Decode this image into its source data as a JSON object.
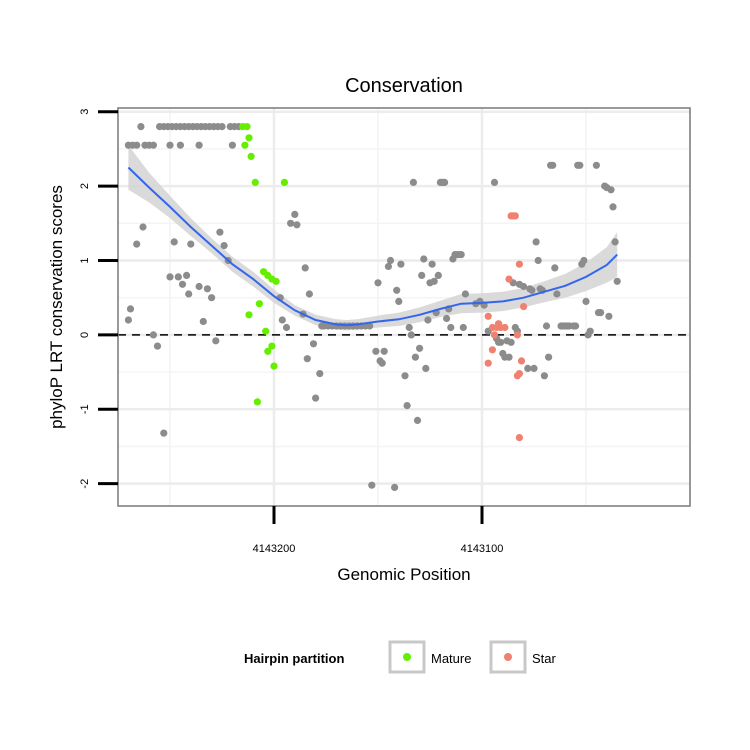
{
  "chart_data": {
    "type": "scatter",
    "title": "Conservation",
    "xlabel": "Genomic Position",
    "ylabel": "phyloP LRT conservation scores",
    "x_reversed": true,
    "xlim": [
      4143000,
      4143275
    ],
    "ylim": [
      -2.3,
      3.05
    ],
    "x_ticks": [
      4143200,
      4143100
    ],
    "x_tick_labels": [
      "4143200",
      "4143100"
    ],
    "y_ticks": [
      -2,
      -1,
      0,
      1,
      2,
      3
    ],
    "y_tick_labels": [
      "-2",
      "-1",
      "0",
      "1",
      "2",
      "3"
    ],
    "grid": true,
    "reference_line": {
      "y": 0,
      "style": "dashed"
    },
    "legend": {
      "title": "Hairpin partition",
      "position": "bottom",
      "entries": [
        {
          "label": "Mature",
          "color": "#66ee00"
        },
        {
          "label": "Star",
          "color": "#f08070"
        }
      ]
    },
    "colors": {
      "other": "#8c8c8c",
      "mature": "#66ee00",
      "star": "#f08070",
      "smooth": "#3366ee",
      "band": "#d3d3d3"
    },
    "series": [
      {
        "group": "other",
        "points": [
          [
            4143269,
            0.35
          ],
          [
            4143270,
            0.2
          ],
          [
            4143270,
            2.55
          ],
          [
            4143268,
            2.55
          ],
          [
            4143266,
            2.55
          ],
          [
            4143264,
            2.8
          ],
          [
            4143262,
            2.55
          ],
          [
            4143260,
            2.55
          ],
          [
            4143258,
            2.55
          ],
          [
            4143255,
            2.8
          ],
          [
            4143253,
            2.8
          ],
          [
            4143251,
            2.8
          ],
          [
            4143249,
            2.8
          ],
          [
            4143247,
            2.8
          ],
          [
            4143245,
            2.8
          ],
          [
            4143243,
            2.8
          ],
          [
            4143241,
            2.8
          ],
          [
            4143239,
            2.8
          ],
          [
            4143237,
            2.8
          ],
          [
            4143235,
            2.8
          ],
          [
            4143233,
            2.8
          ],
          [
            4143231,
            2.8
          ],
          [
            4143229,
            2.8
          ],
          [
            4143227,
            2.8
          ],
          [
            4143225,
            2.8
          ],
          [
            4143221,
            2.8
          ],
          [
            4143219,
            2.8
          ],
          [
            4143217,
            2.8
          ],
          [
            4143250,
            2.55
          ],
          [
            4143245,
            2.55
          ],
          [
            4143236,
            2.55
          ],
          [
            4143220,
            2.55
          ],
          [
            4143266,
            1.22
          ],
          [
            4143263,
            1.45
          ],
          [
            4143258,
            0.0
          ],
          [
            4143256,
            -0.15
          ],
          [
            4143253,
            -1.32
          ],
          [
            4143250,
            0.78
          ],
          [
            4143248,
            1.25
          ],
          [
            4143246,
            0.78
          ],
          [
            4143244,
            0.68
          ],
          [
            4143242,
            0.8
          ],
          [
            4143241,
            0.55
          ],
          [
            4143240,
            1.22
          ],
          [
            4143236,
            0.65
          ],
          [
            4143234,
            0.18
          ],
          [
            4143232,
            0.62
          ],
          [
            4143230,
            0.5
          ],
          [
            4143228,
            -0.08
          ],
          [
            4143226,
            1.38
          ],
          [
            4143224,
            1.2
          ],
          [
            4143222,
            1.0
          ],
          [
            4143197,
            0.5
          ],
          [
            4143196,
            0.2
          ],
          [
            4143194,
            0.1
          ],
          [
            4143192,
            1.5
          ],
          [
            4143190,
            1.62
          ],
          [
            4143189,
            1.48
          ],
          [
            4143186,
            0.28
          ],
          [
            4143185,
            0.9
          ],
          [
            4143184,
            -0.32
          ],
          [
            4143183,
            0.55
          ],
          [
            4143181,
            -0.12
          ],
          [
            4143180,
            -0.85
          ],
          [
            4143178,
            -0.52
          ],
          [
            4143177,
            0.12
          ],
          [
            4143176,
            0.12
          ],
          [
            4143174,
            0.12
          ],
          [
            4143172,
            0.12
          ],
          [
            4143170,
            0.12
          ],
          [
            4143168,
            0.12
          ],
          [
            4143166,
            0.12
          ],
          [
            4143164,
            0.12
          ],
          [
            4143162,
            0.12
          ],
          [
            4143160,
            0.12
          ],
          [
            4143158,
            0.12
          ],
          [
            4143156,
            0.12
          ],
          [
            4143154,
            0.12
          ],
          [
            4143153,
            -2.02
          ],
          [
            4143151,
            -0.22
          ],
          [
            4143150,
            0.7
          ],
          [
            4143149,
            -0.35
          ],
          [
            4143148,
            -0.38
          ],
          [
            4143147,
            -0.22
          ],
          [
            4143145,
            0.92
          ],
          [
            4143144,
            1.0
          ],
          [
            4143142,
            -2.05
          ],
          [
            4143141,
            0.6
          ],
          [
            4143140,
            0.45
          ],
          [
            4143139,
            0.95
          ],
          [
            4143137,
            -0.55
          ],
          [
            4143136,
            -0.95
          ],
          [
            4143135,
            0.1
          ],
          [
            4143134,
            0.0
          ],
          [
            4143133,
            2.05
          ],
          [
            4143132,
            -0.3
          ],
          [
            4143131,
            -1.15
          ],
          [
            4143130,
            -0.18
          ],
          [
            4143129,
            0.8
          ],
          [
            4143128,
            1.02
          ],
          [
            4143127,
            -0.45
          ],
          [
            4143126,
            0.2
          ],
          [
            4143125,
            0.7
          ],
          [
            4143124,
            0.95
          ],
          [
            4143123,
            0.72
          ],
          [
            4143122,
            0.3
          ],
          [
            4143121,
            0.8
          ],
          [
            4143120,
            2.05
          ],
          [
            4143119,
            2.05
          ],
          [
            4143118,
            2.05
          ],
          [
            4143117,
            0.22
          ],
          [
            4143116,
            0.35
          ],
          [
            4143115,
            0.1
          ],
          [
            4143114,
            1.02
          ],
          [
            4143113,
            1.08
          ],
          [
            4143112,
            1.08
          ],
          [
            4143111,
            1.08
          ],
          [
            4143110,
            1.08
          ],
          [
            4143109,
            0.1
          ],
          [
            4143108,
            0.55
          ],
          [
            4143103,
            0.42
          ],
          [
            4143101,
            0.45
          ],
          [
            4143099,
            0.4
          ],
          [
            4143097,
            0.05
          ],
          [
            4143094,
            2.05
          ],
          [
            4143093,
            -0.05
          ],
          [
            4143092,
            -0.1
          ],
          [
            4143091,
            -0.1
          ],
          [
            4143090,
            -0.25
          ],
          [
            4143089,
            -0.3
          ],
          [
            4143088,
            -0.08
          ],
          [
            4143087,
            -0.3
          ],
          [
            4143086,
            -0.1
          ],
          [
            4143085,
            0.7
          ],
          [
            4143084,
            0.1
          ],
          [
            4143083,
            0.05
          ],
          [
            4143082,
            0.68
          ],
          [
            4143080,
            0.65
          ],
          [
            4143078,
            -0.45
          ],
          [
            4143077,
            0.62
          ],
          [
            4143076,
            0.6
          ],
          [
            4143075,
            -0.45
          ],
          [
            4143074,
            1.25
          ],
          [
            4143073,
            1.0
          ],
          [
            4143072,
            0.62
          ],
          [
            4143071,
            0.6
          ],
          [
            4143070,
            -0.55
          ],
          [
            4143069,
            0.12
          ],
          [
            4143068,
            -0.3
          ],
          [
            4143067,
            2.28
          ],
          [
            4143066,
            2.28
          ],
          [
            4143065,
            0.9
          ],
          [
            4143064,
            0.55
          ],
          [
            4143062,
            0.12
          ],
          [
            4143061,
            0.12
          ],
          [
            4143060,
            0.12
          ],
          [
            4143059,
            0.12
          ],
          [
            4143058,
            0.12
          ],
          [
            4143056,
            0.12
          ],
          [
            4143055,
            0.12
          ],
          [
            4143054,
            2.28
          ],
          [
            4143053,
            2.28
          ],
          [
            4143052,
            0.95
          ],
          [
            4143051,
            1.0
          ],
          [
            4143050,
            0.45
          ],
          [
            4143049,
            0.0
          ],
          [
            4143048,
            0.05
          ],
          [
            4143045,
            2.28
          ],
          [
            4143044,
            0.3
          ],
          [
            4143043,
            0.3
          ],
          [
            4143041,
            2.0
          ],
          [
            4143040,
            1.98
          ],
          [
            4143039,
            0.25
          ],
          [
            4143038,
            1.95
          ],
          [
            4143037,
            1.72
          ],
          [
            4143036,
            1.25
          ],
          [
            4143035,
            0.72
          ]
        ]
      },
      {
        "group": "mature",
        "points": [
          [
            4143215,
            2.8
          ],
          [
            4143213,
            2.8
          ],
          [
            4143212,
            2.65
          ],
          [
            4143214,
            2.55
          ],
          [
            4143211,
            2.4
          ],
          [
            4143209,
            2.05
          ],
          [
            4143205,
            0.85
          ],
          [
            4143203,
            0.8
          ],
          [
            4143201,
            0.75
          ],
          [
            4143199,
            0.72
          ],
          [
            4143195,
            2.05
          ],
          [
            4143212,
            0.27
          ],
          [
            4143207,
            0.42
          ],
          [
            4143204,
            0.05
          ],
          [
            4143203,
            -0.22
          ],
          [
            4143201,
            -0.15
          ],
          [
            4143200,
            -0.42
          ],
          [
            4143208,
            -0.9
          ]
        ]
      },
      {
        "group": "star",
        "points": [
          [
            4143097,
            0.25
          ],
          [
            4143095,
            0.1
          ],
          [
            4143093,
            0.1
          ],
          [
            4143091,
            0.1
          ],
          [
            4143089,
            0.1
          ],
          [
            4143087,
            0.75
          ],
          [
            4143086,
            1.6
          ],
          [
            4143085,
            1.6
          ],
          [
            4143084,
            1.6
          ],
          [
            4143083,
            0.0
          ],
          [
            4143082,
            0.95
          ],
          [
            4143080,
            0.38
          ],
          [
            4143083,
            -0.55
          ],
          [
            4143082,
            -0.52
          ],
          [
            4143081,
            -0.35
          ],
          [
            4143082,
            -1.38
          ],
          [
            4143097,
            -0.38
          ],
          [
            4143095,
            -0.2
          ],
          [
            4143094,
            0.0
          ],
          [
            4143092,
            0.15
          ]
        ]
      }
    ],
    "smooth": {
      "x": [
        4143270,
        4143260,
        4143250,
        4143240,
        4143230,
        4143220,
        4143210,
        4143200,
        4143190,
        4143180,
        4143170,
        4143165,
        4143160,
        4143150,
        4143140,
        4143130,
        4143120,
        4143110,
        4143100,
        4143090,
        4143080,
        4143070,
        4143060,
        4143050,
        4143040,
        4143035
      ],
      "y": [
        2.25,
        1.98,
        1.72,
        1.45,
        1.2,
        0.95,
        0.75,
        0.52,
        0.33,
        0.2,
        0.14,
        0.13,
        0.14,
        0.18,
        0.21,
        0.27,
        0.35,
        0.42,
        0.43,
        0.45,
        0.5,
        0.58,
        0.66,
        0.78,
        0.94,
        1.08
      ],
      "band_lower": [
        1.95,
        1.78,
        1.57,
        1.33,
        1.1,
        0.85,
        0.65,
        0.43,
        0.26,
        0.13,
        0.07,
        0.06,
        0.07,
        0.1,
        0.12,
        0.17,
        0.24,
        0.29,
        0.3,
        0.32,
        0.37,
        0.44,
        0.5,
        0.59,
        0.7,
        0.78
      ],
      "band_upper": [
        2.55,
        2.18,
        1.87,
        1.57,
        1.3,
        1.05,
        0.85,
        0.61,
        0.4,
        0.27,
        0.21,
        0.2,
        0.21,
        0.26,
        0.3,
        0.37,
        0.46,
        0.55,
        0.56,
        0.58,
        0.63,
        0.72,
        0.82,
        0.97,
        1.18,
        1.38
      ]
    }
  }
}
